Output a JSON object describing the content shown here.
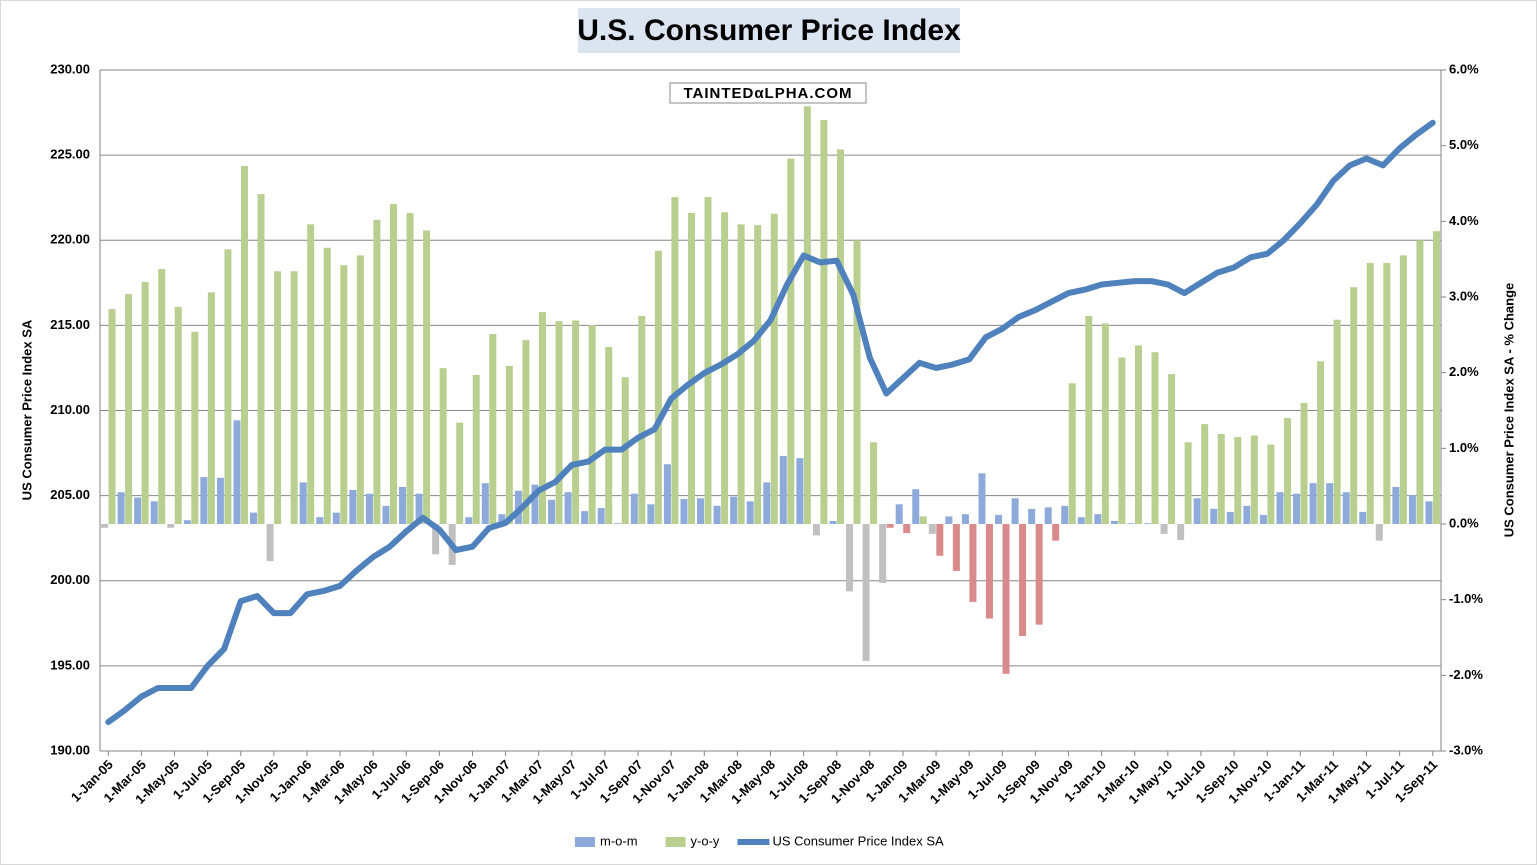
{
  "chart_data": {
    "type": "bar_line",
    "title": "U.S. Consumer Price Index",
    "watermark": "TAINTEDαLPHA.COM",
    "y_label": "US Consumer Price Index SA",
    "y2_label": "US Consumer Price Index SA - % Change",
    "categories": [
      "1-Jan-05",
      null,
      "1-Mar-05",
      null,
      "1-May-05",
      null,
      "1-Jul-05",
      null,
      "1-Sep-05",
      null,
      "1-Nov-05",
      null,
      "1-Jan-06",
      null,
      "1-Mar-06",
      null,
      "1-May-06",
      null,
      "1-Jul-06",
      null,
      "1-Sep-06",
      null,
      "1-Nov-06",
      null,
      "1-Jan-07",
      null,
      "1-Mar-07",
      null,
      "1-May-07",
      null,
      "1-Jul-07",
      null,
      "1-Sep-07",
      null,
      "1-Nov-07",
      null,
      "1-Jan-08",
      null,
      "1-Mar-08",
      null,
      "1-May-08",
      null,
      "1-Jul-08",
      null,
      "1-Sep-08",
      null,
      "1-Nov-08",
      null,
      "1-Jan-09",
      null,
      "1-Mar-09",
      null,
      "1-May-09",
      null,
      "1-Jul-09",
      null,
      "1-Sep-09",
      null,
      "1-Nov-09",
      null,
      "1-Jan-10",
      null,
      "1-Mar-10",
      null,
      "1-May-10",
      null,
      "1-Jul-10",
      null,
      "1-Sep-10",
      null,
      "1-Nov-10",
      null,
      "1-Jan-11",
      null,
      "1-Mar-11",
      null,
      "1-May-11",
      null,
      "1-Jul-11",
      null,
      "1-Sep-11"
    ],
    "series": [
      {
        "name": "m-o-m",
        "kind": "bar",
        "axis": "y2",
        "color": "#8eaadb",
        "negative_color": "#c0c0c0",
        "values": [
          -0.05,
          0.42,
          0.35,
          0.3,
          -0.05,
          0.05,
          0.62,
          0.61,
          1.37,
          0.15,
          -0.49,
          0.0,
          0.55,
          0.09,
          0.15,
          0.45,
          0.4,
          0.24,
          0.49,
          0.4,
          -0.4,
          -0.54,
          0.09,
          0.54,
          0.13,
          0.44,
          0.52,
          0.32,
          0.42,
          0.17,
          0.21,
          0.01,
          0.4,
          0.26,
          0.79,
          0.33,
          0.34,
          0.24,
          0.36,
          0.3,
          0.55,
          0.9,
          0.87,
          -0.15,
          0.04,
          -0.89,
          -1.81,
          -0.78,
          0.26,
          0.46,
          -0.13,
          0.1,
          0.13,
          0.67,
          0.12,
          0.34,
          0.2,
          0.22,
          0.24,
          0.09,
          0.13,
          0.04,
          0.01,
          0.01,
          -0.13,
          -0.21,
          0.34,
          0.2,
          0.16,
          0.24,
          0.12,
          0.42,
          0.4,
          0.54,
          0.54,
          0.42,
          0.16,
          -0.22,
          0.49,
          0.38,
          0.3
        ]
      },
      {
        "name": "y-o-y",
        "kind": "bar",
        "axis": "y2",
        "color": "#b8cf8f",
        "negative_color": "#d98b8b",
        "values": [
          2.84,
          3.04,
          3.2,
          3.37,
          2.87,
          2.54,
          3.06,
          3.63,
          4.73,
          4.36,
          3.34,
          3.34,
          3.96,
          3.65,
          3.42,
          3.55,
          4.02,
          4.23,
          4.11,
          3.88,
          2.06,
          1.34,
          1.97,
          2.51,
          2.09,
          2.43,
          2.8,
          2.68,
          2.69,
          2.63,
          2.34,
          1.94,
          2.75,
          3.61,
          4.32,
          4.11,
          4.32,
          4.12,
          3.96,
          3.95,
          4.1,
          4.83,
          5.52,
          5.34,
          4.95,
          3.75,
          1.08,
          -0.05,
          -0.12,
          0.1,
          -0.42,
          -0.62,
          -1.03,
          -1.25,
          -1.98,
          -1.48,
          -1.33,
          -0.22,
          1.86,
          2.75,
          2.65,
          2.2,
          2.36,
          2.27,
          1.98,
          1.08,
          1.32,
          1.19,
          1.15,
          1.17,
          1.05,
          1.4,
          1.6,
          2.15,
          2.7,
          3.13,
          3.45,
          3.45,
          3.55,
          3.75,
          3.87
        ]
      },
      {
        "name": "US Consumer Price Index SA",
        "kind": "line",
        "axis": "y",
        "color": "#4f81bd",
        "values": [
          191.7,
          192.4,
          193.2,
          193.7,
          193.7,
          193.7,
          195.0,
          196.0,
          198.8,
          199.1,
          198.1,
          198.1,
          199.2,
          199.4,
          199.7,
          200.6,
          201.4,
          202.0,
          202.9,
          203.7,
          203.0,
          201.8,
          202.0,
          203.1,
          203.4,
          204.3,
          205.3,
          205.8,
          206.8,
          207.0,
          207.7,
          207.7,
          208.4,
          208.9,
          210.7,
          211.5,
          212.2,
          212.7,
          213.3,
          214.1,
          215.3,
          217.4,
          219.1,
          218.7,
          218.8,
          216.8,
          213.1,
          211.0,
          211.9,
          212.8,
          212.5,
          212.7,
          213.0,
          214.3,
          214.8,
          215.5,
          215.9,
          216.4,
          216.9,
          217.1,
          217.4,
          217.5,
          217.6,
          217.6,
          217.4,
          216.9,
          217.5,
          218.1,
          218.4,
          219.0,
          219.2,
          220.0,
          221.0,
          222.1,
          223.5,
          224.4,
          224.8,
          224.4,
          225.4,
          226.2,
          226.9
        ]
      }
    ],
    "ylim": [
      190,
      230
    ],
    "yticks": [
      {
        "value": 190,
        "label": "190.00"
      },
      {
        "value": 195,
        "label": "195.00"
      },
      {
        "value": 200,
        "label": "200.00"
      },
      {
        "value": 205,
        "label": "205.00"
      },
      {
        "value": 210,
        "label": "210.00"
      },
      {
        "value": 215,
        "label": "215.00"
      },
      {
        "value": 220,
        "label": "220.00"
      },
      {
        "value": 225,
        "label": "225.00"
      },
      {
        "value": 230,
        "label": "230.00"
      }
    ],
    "y2lim": [
      -3,
      6
    ],
    "y2ticks": [
      {
        "value": -3,
        "label": "-3.0%"
      },
      {
        "value": -2,
        "label": "-2.0%"
      },
      {
        "value": -1,
        "label": "-1.0%"
      },
      {
        "value": 0,
        "label": "0.0%"
      },
      {
        "value": 1,
        "label": "1.0%"
      },
      {
        "value": 2,
        "label": "2.0%"
      },
      {
        "value": 3,
        "label": "3.0%"
      },
      {
        "value": 4,
        "label": "4.0%"
      },
      {
        "value": 5,
        "label": "5.0%"
      },
      {
        "value": 6,
        "label": "6.0%"
      }
    ],
    "grid": true,
    "legend": "bottom"
  }
}
